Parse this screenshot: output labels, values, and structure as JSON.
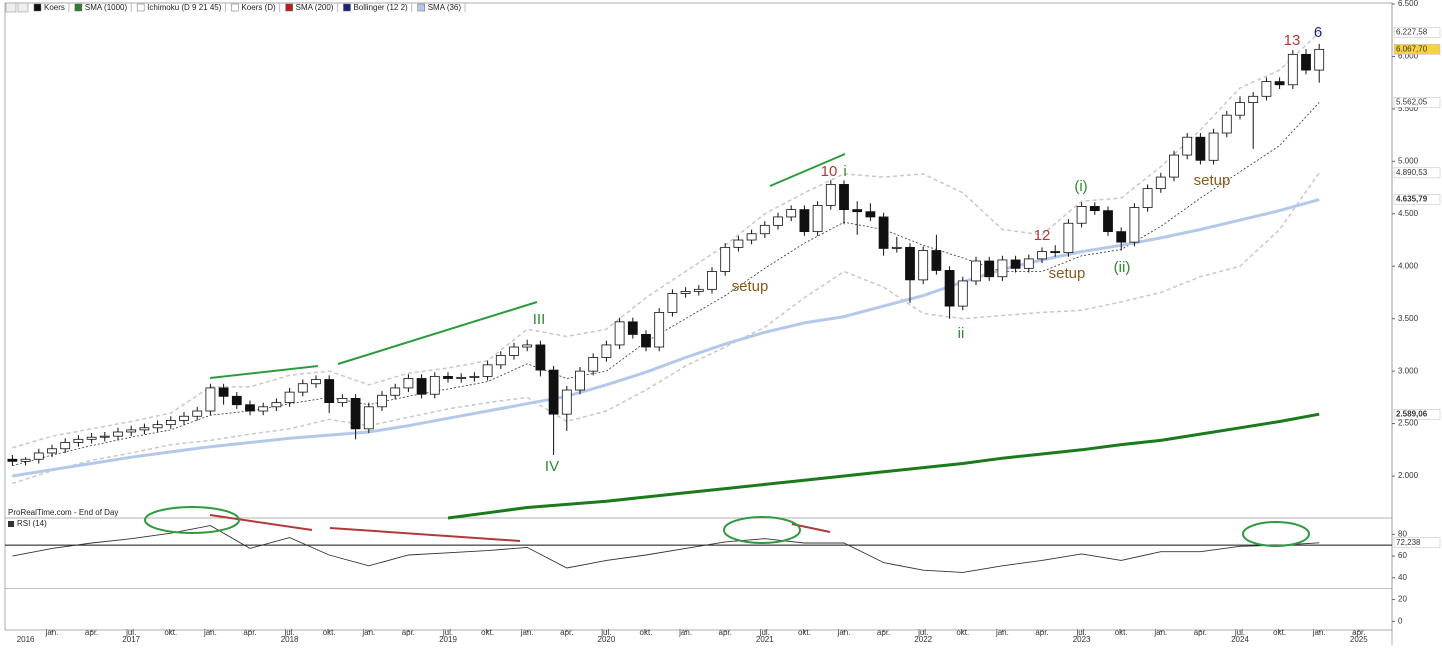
{
  "toolbar": {
    "items": [
      {
        "label": "Koers",
        "color": "#111111"
      },
      {
        "label": "SMA (1000)",
        "color": "#2e7d32"
      },
      {
        "label": "Ichimoku (D 9 21 45)",
        "color": "#ffffff"
      },
      {
        "label": "Koers (D)",
        "color": "#ffffff"
      },
      {
        "label": "SMA (200)",
        "color": "#b22222"
      },
      {
        "label": "Bollinger (12 2)",
        "color": "#1a237e"
      },
      {
        "label": "SMA (36)",
        "color": "#b4c8ea"
      }
    ]
  },
  "chart_data": [
    {
      "type": "candlestick",
      "source": "ProRealTime.com - End of Day",
      "x": [
        "2016-10",
        "2016-11",
        "2016-12",
        "2017-01",
        "2017-02",
        "2017-03",
        "2017-04",
        "2017-05",
        "2017-06",
        "2017-07",
        "2017-08",
        "2017-09",
        "2017-10",
        "2017-11",
        "2017-12",
        "2018-01",
        "2018-02",
        "2018-03",
        "2018-04",
        "2018-05",
        "2018-06",
        "2018-07",
        "2018-08",
        "2018-09",
        "2018-10",
        "2018-11",
        "2018-12",
        "2019-01",
        "2019-02",
        "2019-03",
        "2019-04",
        "2019-05",
        "2019-06",
        "2019-07",
        "2019-08",
        "2019-09",
        "2019-10",
        "2019-11",
        "2019-12",
        "2020-01",
        "2020-02",
        "2020-03",
        "2020-04",
        "2020-05",
        "2020-06",
        "2020-07",
        "2020-08",
        "2020-09",
        "2020-10",
        "2020-11",
        "2020-12",
        "2021-01",
        "2021-02",
        "2021-03",
        "2021-04",
        "2021-05",
        "2021-06",
        "2021-07",
        "2021-08",
        "2021-09",
        "2021-10",
        "2021-11",
        "2021-12",
        "2022-01",
        "2022-02",
        "2022-03",
        "2022-04",
        "2022-05",
        "2022-06",
        "2022-07",
        "2022-08",
        "2022-09",
        "2022-10",
        "2022-11",
        "2022-12",
        "2023-01",
        "2023-02",
        "2023-03",
        "2023-04",
        "2023-05",
        "2023-06",
        "2023-07",
        "2023-08",
        "2023-09",
        "2023-10",
        "2023-11",
        "2023-12",
        "2024-01",
        "2024-02",
        "2024-03",
        "2024-04",
        "2024-05",
        "2024-06",
        "2024-07",
        "2024-08",
        "2024-09",
        "2024-10",
        "2024-11",
        "2024-12",
        "2025-01"
      ],
      "open": [
        2160,
        2140,
        2160,
        2220,
        2260,
        2320,
        2350,
        2370,
        2380,
        2420,
        2440,
        2460,
        2490,
        2530,
        2570,
        2620,
        2840,
        2760,
        2680,
        2620,
        2660,
        2700,
        2800,
        2880,
        2920,
        2700,
        2740,
        2450,
        2660,
        2770,
        2840,
        2930,
        2780,
        2950,
        2930,
        2940,
        2950,
        3060,
        3150,
        3230,
        3250,
        3010,
        2590,
        2820,
        3000,
        3130,
        3250,
        3470,
        3350,
        3230,
        3560,
        3740,
        3760,
        3780,
        3950,
        4180,
        4250,
        4310,
        4390,
        4470,
        4540,
        4330,
        4580,
        4780,
        4540,
        4520,
        4470,
        4170,
        4180,
        3870,
        4150,
        3960,
        3620,
        3860,
        4050,
        3900,
        4060,
        3980,
        4070,
        4140,
        4130,
        4410,
        4570,
        4530,
        4330,
        4230,
        4560,
        4740,
        4850,
        5060,
        5230,
        5010,
        5270,
        5440,
        5560,
        5620,
        5760,
        5730,
        6020,
        5870
      ],
      "high": [
        2200,
        2180,
        2260,
        2300,
        2360,
        2390,
        2410,
        2420,
        2460,
        2480,
        2500,
        2530,
        2570,
        2610,
        2660,
        2880,
        2880,
        2800,
        2720,
        2700,
        2740,
        2840,
        2920,
        2960,
        2960,
        2780,
        2780,
        2700,
        2810,
        2880,
        2970,
        2970,
        2990,
        2990,
        2980,
        2990,
        3100,
        3190,
        3270,
        3300,
        3290,
        3050,
        2860,
        3040,
        3170,
        3290,
        3510,
        3510,
        3390,
        3600,
        3780,
        3800,
        3820,
        3990,
        4220,
        4290,
        4350,
        4430,
        4510,
        4580,
        4580,
        4620,
        4820,
        4820,
        4620,
        4600,
        4510,
        4280,
        4220,
        4190,
        4300,
        4000,
        3900,
        4090,
        4090,
        4100,
        4100,
        4110,
        4180,
        4200,
        4450,
        4610,
        4610,
        4570,
        4370,
        4600,
        4780,
        4890,
        5100,
        5270,
        5270,
        5310,
        5480,
        5620,
        5660,
        5800,
        5800,
        6060,
        6070,
        6120
      ],
      "low": [
        2100,
        2100,
        2120,
        2180,
        2220,
        2280,
        2310,
        2330,
        2340,
        2380,
        2400,
        2420,
        2450,
        2490,
        2530,
        2580,
        2680,
        2640,
        2580,
        2580,
        2620,
        2660,
        2760,
        2840,
        2600,
        2660,
        2350,
        2410,
        2620,
        2730,
        2800,
        2740,
        2740,
        2890,
        2890,
        2900,
        2910,
        3020,
        3110,
        3190,
        2950,
        2200,
        2430,
        2780,
        2960,
        3090,
        3210,
        3310,
        3190,
        3190,
        3520,
        3700,
        3720,
        3740,
        3910,
        4140,
        4210,
        4270,
        4350,
        4430,
        4290,
        4290,
        4540,
        4400,
        4300,
        4430,
        4100,
        4130,
        3650,
        3830,
        3920,
        3500,
        3580,
        3820,
        3860,
        3860,
        3940,
        3940,
        4030,
        4090,
        4090,
        4370,
        4490,
        4290,
        4150,
        4190,
        4520,
        4700,
        4810,
        5020,
        4970,
        4970,
        5230,
        5400,
        5120,
        5580,
        5690,
        5690,
        5830,
        5750
      ],
      "close": [
        2140,
        2160,
        2220,
        2260,
        2320,
        2350,
        2370,
        2380,
        2420,
        2440,
        2460,
        2490,
        2530,
        2570,
        2620,
        2840,
        2760,
        2680,
        2620,
        2660,
        2700,
        2800,
        2880,
        2920,
        2700,
        2740,
        2450,
        2660,
        2770,
        2840,
        2930,
        2780,
        2950,
        2930,
        2940,
        2950,
        3060,
        3150,
        3230,
        3250,
        3010,
        2590,
        2820,
        3000,
        3130,
        3250,
        3470,
        3350,
        3230,
        3560,
        3740,
        3760,
        3780,
        3950,
        4180,
        4250,
        4310,
        4390,
        4470,
        4540,
        4330,
        4580,
        4780,
        4540,
        4520,
        4470,
        4170,
        4180,
        3870,
        4150,
        3960,
        3620,
        3860,
        4050,
        3900,
        4060,
        3980,
        4070,
        4140,
        4130,
        4410,
        4570,
        4530,
        4330,
        4230,
        4560,
        4740,
        4850,
        5060,
        5230,
        5010,
        5270,
        5440,
        5560,
        5620,
        5760,
        5730,
        6020,
        5870,
        6067.7
      ],
      "last_close_label": "6.067,70",
      "last_label_bg": "#f5d33b",
      "up_color": "#ffffff",
      "down_color": "#111111",
      "ylim": [
        1600,
        6500
      ],
      "yticks": [
        {
          "value": 6500,
          "label": "6.500"
        },
        {
          "value": 6000,
          "label": "6.000"
        },
        {
          "value": 5500,
          "label": "5.500"
        },
        {
          "value": 5000,
          "label": "5.000"
        },
        {
          "value": 4500,
          "label": "4.500"
        },
        {
          "value": 4000,
          "label": "4.000"
        },
        {
          "value": 3500,
          "label": "3.500"
        },
        {
          "value": 3000,
          "label": "3.000"
        },
        {
          "value": 2500,
          "label": "2.500"
        },
        {
          "value": 2000,
          "label": "2.000"
        }
      ],
      "overlay_x": [
        "2016-10",
        "2017-01",
        "2017-04",
        "2017-07",
        "2017-10",
        "2018-01",
        "2018-04",
        "2018-07",
        "2018-10",
        "2019-01",
        "2019-04",
        "2019-07",
        "2019-10",
        "2020-01",
        "2020-04",
        "2020-07",
        "2020-10",
        "2021-01",
        "2021-04",
        "2021-07",
        "2021-10",
        "2022-01",
        "2022-04",
        "2022-07",
        "2022-10",
        "2023-01",
        "2023-04",
        "2023-07",
        "2023-10",
        "2024-01",
        "2024-04",
        "2024-07",
        "2024-10",
        "2025-01"
      ],
      "overlays": [
        {
          "color": "#c8c8c8",
          "dash": "4 3",
          "width": 1.5,
          "label_color": "#888888",
          "last_label": "6.227,58",
          "values": [
            2270,
            2380,
            2450,
            2520,
            2600,
            2850,
            2850,
            2960,
            3000,
            2870,
            2980,
            3030,
            3100,
            3400,
            3330,
            3400,
            3700,
            3950,
            4200,
            4500,
            4700,
            4880,
            4850,
            4880,
            4700,
            4350,
            4300,
            4620,
            4650,
            4950,
            5300,
            5700,
            5870,
            6227.58
          ]
        },
        {
          "color": "#c8c8c8",
          "dash": "4 3",
          "width": 1.5,
          "label_color": "#888888",
          "last_label": "4.890,53",
          "values": [
            1930,
            2050,
            2150,
            2220,
            2300,
            2340,
            2400,
            2450,
            2540,
            2480,
            2560,
            2640,
            2700,
            2750,
            2520,
            2620,
            2820,
            3050,
            3230,
            3420,
            3700,
            3950,
            3800,
            3550,
            3500,
            3530,
            3560,
            3580,
            3660,
            3750,
            3900,
            4000,
            4350,
            4890.53
          ]
        },
        {
          "color": "#333333",
          "dash": "2 2",
          "width": 0.8,
          "label_color": "#333333",
          "last_label": "5.562,05",
          "values": [
            2100,
            2200,
            2290,
            2370,
            2440,
            2580,
            2620,
            2690,
            2750,
            2680,
            2760,
            2830,
            2900,
            3070,
            2930,
            3000,
            3280,
            3500,
            3720,
            3980,
            4220,
            4420,
            4350,
            4200,
            4080,
            3950,
            3950,
            4100,
            4160,
            4380,
            4650,
            4900,
            5150,
            5562.05
          ]
        },
        {
          "color": "#b4c8ea",
          "dash": "none",
          "width": 3,
          "label_color": "#8fa8d8",
          "last_label": "4.635,79",
          "values": [
            2000,
            2060,
            2120,
            2180,
            2230,
            2280,
            2320,
            2360,
            2390,
            2420,
            2480,
            2550,
            2620,
            2690,
            2760,
            2870,
            2990,
            3130,
            3260,
            3370,
            3460,
            3520,
            3620,
            3720,
            3850,
            3970,
            4060,
            4140,
            4200,
            4270,
            4350,
            4440,
            4530,
            4635.79
          ]
        },
        {
          "color": "#1b7a1b",
          "dash": "none",
          "width": 3,
          "label_color": "#1b7a1b",
          "last_label": "2.589,06",
          "values": [
            null,
            null,
            null,
            null,
            null,
            null,
            null,
            null,
            null,
            null,
            null,
            1600,
            1650,
            1700,
            1730,
            1760,
            1800,
            1840,
            1880,
            1920,
            1960,
            2000,
            2040,
            2080,
            2120,
            2170,
            2210,
            2250,
            2300,
            2340,
            2400,
            2460,
            2520,
            2589.06
          ]
        }
      ],
      "xticks": [
        {
          "value": "2017-01",
          "label": "jan."
        },
        {
          "value": "2017-04",
          "label": "apr."
        },
        {
          "value": "2017-07",
          "label": "jul."
        },
        {
          "value": "2017-10",
          "label": "okt."
        },
        {
          "value": "2018-01",
          "label": "jan."
        },
        {
          "value": "2018-04",
          "label": "apr."
        },
        {
          "value": "2018-07",
          "label": "jul."
        },
        {
          "value": "2018-10",
          "label": "okt."
        },
        {
          "value": "2019-01",
          "label": "jan."
        },
        {
          "value": "2019-04",
          "label": "apr."
        },
        {
          "value": "2019-07",
          "label": "jul."
        },
        {
          "value": "2019-10",
          "label": "okt."
        },
        {
          "value": "2020-01",
          "label": "jan."
        },
        {
          "value": "2020-04",
          "label": "apr."
        },
        {
          "value": "2020-07",
          "label": "jul."
        },
        {
          "value": "2020-10",
          "label": "okt."
        },
        {
          "value": "2021-01",
          "label": "jan."
        },
        {
          "value": "2021-04",
          "label": "apr."
        },
        {
          "value": "2021-07",
          "label": "jul."
        },
        {
          "value": "2021-10",
          "label": "okt."
        },
        {
          "value": "2022-01",
          "label": "jan."
        },
        {
          "value": "2022-04",
          "label": "apr."
        },
        {
          "value": "2022-07",
          "label": "jul."
        },
        {
          "value": "2022-10",
          "label": "okt."
        },
        {
          "value": "2023-01",
          "label": "jan."
        },
        {
          "value": "2023-04",
          "label": "apr."
        },
        {
          "value": "2023-07",
          "label": "jul."
        },
        {
          "value": "2023-10",
          "label": "okt."
        },
        {
          "value": "2024-01",
          "label": "jan."
        },
        {
          "value": "2024-04",
          "label": "apr."
        },
        {
          "value": "2024-07",
          "label": "jul."
        },
        {
          "value": "2024-10",
          "label": "okt."
        },
        {
          "value": "2025-01",
          "label": "jan."
        },
        {
          "value": "2025-04",
          "label": "apr."
        }
      ],
      "year_ticks": [
        {
          "value": "2016-11",
          "label": "2016"
        },
        {
          "value": "2017-07",
          "label": "2017"
        },
        {
          "value": "2018-07",
          "label": "2018"
        },
        {
          "value": "2019-07",
          "label": "2019"
        },
        {
          "value": "2020-07",
          "label": "2020"
        },
        {
          "value": "2021-07",
          "label": "2021"
        },
        {
          "value": "2022-07",
          "label": "2022"
        },
        {
          "value": "2023-07",
          "label": "2023"
        },
        {
          "value": "2024-07",
          "label": "2024"
        },
        {
          "value": "2025-04",
          "label": "2025"
        }
      ],
      "annotations": [
        {
          "text": "III",
          "color": "#2e8b2e"
        },
        {
          "text": "IV",
          "color": "#2e8b2e"
        },
        {
          "text": "10",
          "color": "#b03a3a"
        },
        {
          "text": "i",
          "color": "#2e8b2e"
        },
        {
          "text": "ii",
          "color": "#2e8b2e"
        },
        {
          "text": "12",
          "color": "#b03a3a"
        },
        {
          "text": "setup",
          "color": "#8a5a1a"
        },
        {
          "text": "setup",
          "color": "#8a5a1a"
        },
        {
          "text": "setup",
          "color": "#8a5a1a"
        },
        {
          "text": "(i)",
          "color": "#2e8b2e"
        },
        {
          "text": "(ii)",
          "color": "#2e8b2e"
        },
        {
          "text": "13",
          "color": "#b03a3a"
        },
        {
          "text": "6",
          "color": "#1a237e"
        }
      ]
    },
    {
      "type": "line",
      "title": "RSI (14)",
      "color": "#333333",
      "x": [
        "2016-10",
        "2017-01",
        "2017-04",
        "2017-07",
        "2017-10",
        "2018-01",
        "2018-04",
        "2018-07",
        "2018-10",
        "2019-01",
        "2019-04",
        "2019-07",
        "2019-10",
        "2020-01",
        "2020-04",
        "2020-07",
        "2020-10",
        "2021-01",
        "2021-04",
        "2021-07",
        "2021-10",
        "2022-01",
        "2022-04",
        "2022-07",
        "2022-10",
        "2023-01",
        "2023-04",
        "2023-07",
        "2023-10",
        "2024-01",
        "2024-04",
        "2024-07",
        "2024-10",
        "2025-01"
      ],
      "values": [
        60,
        67,
        72,
        76,
        81,
        88,
        67,
        77,
        61,
        51,
        61,
        63,
        65,
        68,
        49,
        56,
        61,
        67,
        73,
        76,
        72,
        72,
        54,
        47,
        45,
        51,
        56,
        62,
        56,
        64,
        64,
        69,
        70,
        72.238
      ],
      "last_label": "72,238",
      "ylim": [
        -8,
        95
      ],
      "yticks": [
        0,
        20,
        40,
        60,
        80
      ],
      "levels": [
        70,
        30
      ],
      "level_colors": [
        "#111111",
        "#999999"
      ]
    }
  ]
}
